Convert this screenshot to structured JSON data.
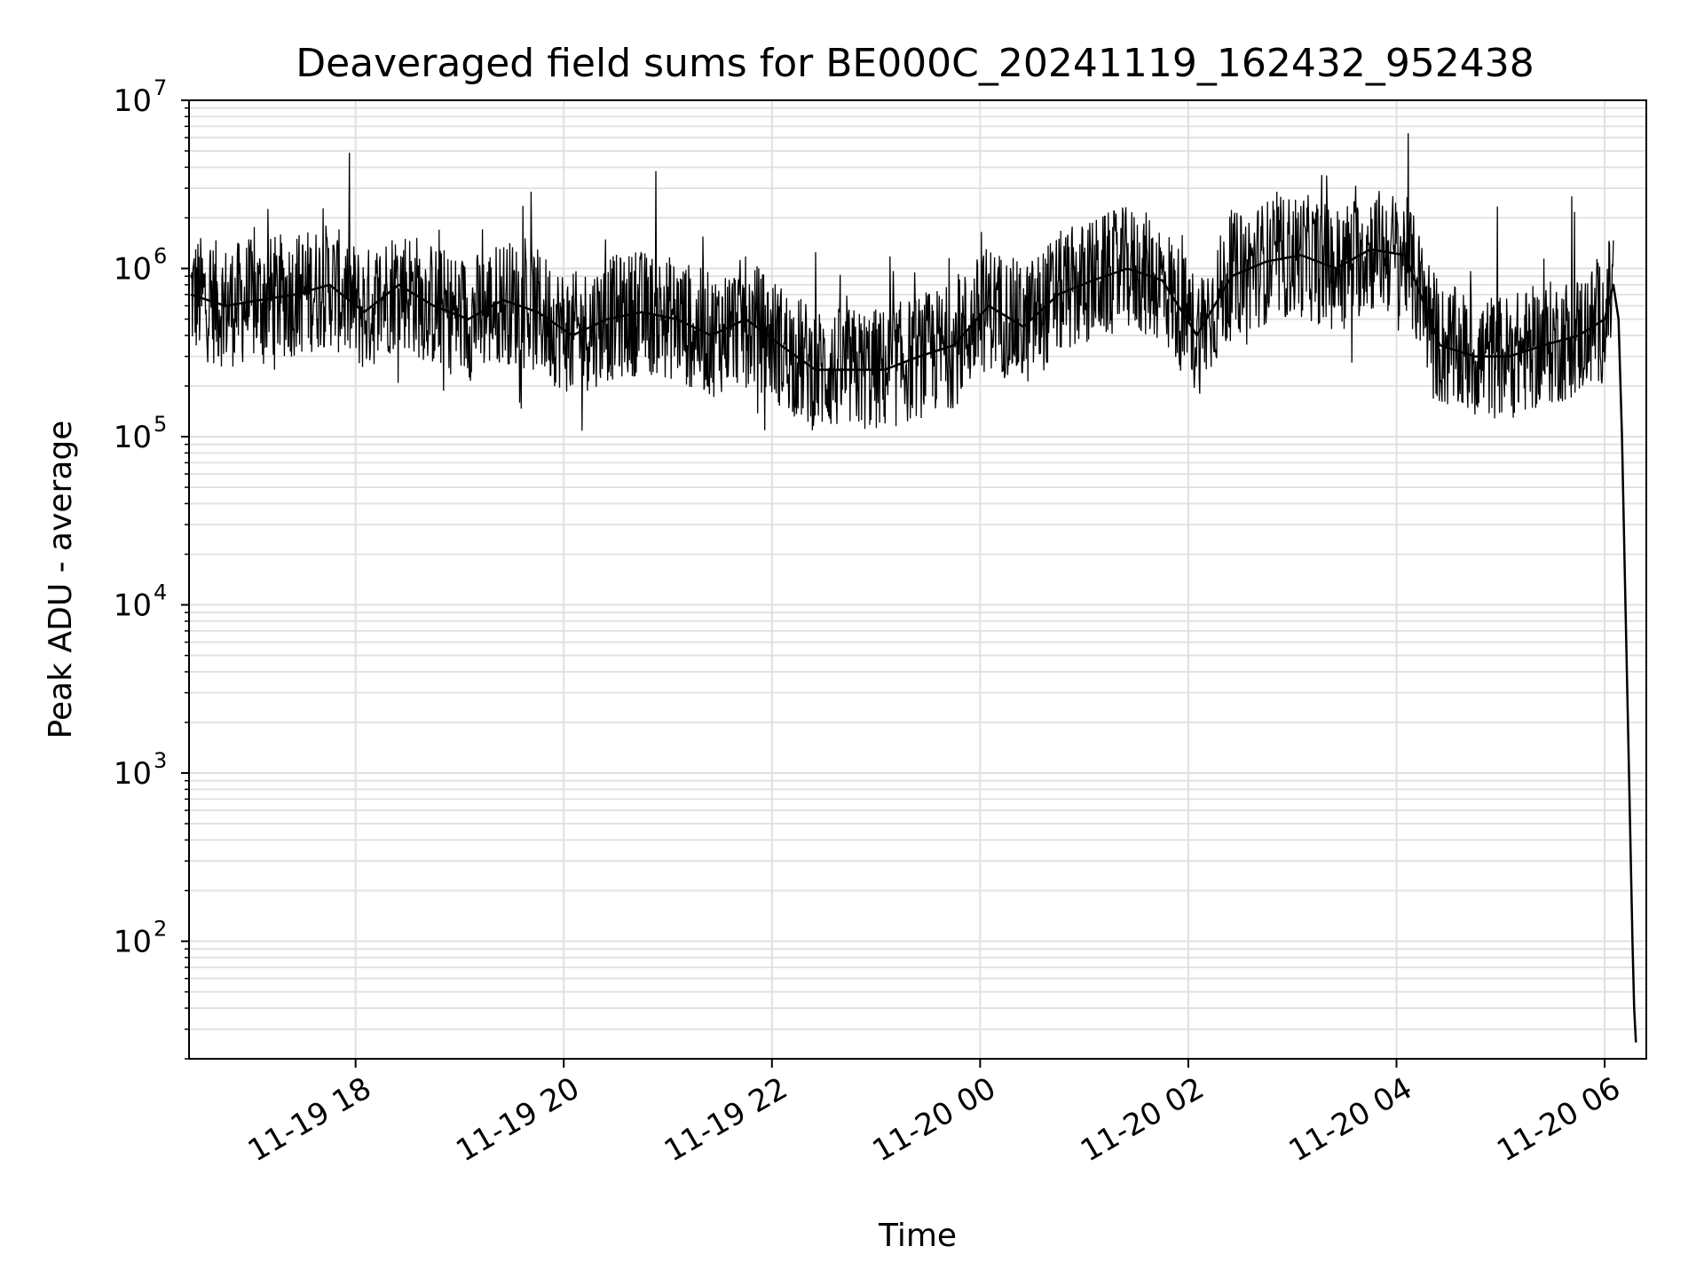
{
  "chart_data": {
    "type": "line",
    "title": "Deaveraged field sums for BE000C_20241119_162432_952438",
    "xlabel": "Time",
    "ylabel": "Peak ADU - average",
    "y_scale": "log",
    "xlim": [
      "2024-11-19 16:24",
      "2024-11-20 06:24"
    ],
    "ylim": [
      20,
      10000000
    ],
    "x_ticks": [
      "11-19 18",
      "11-19 20",
      "11-19 22",
      "11-20 00",
      "11-20 02",
      "11-20 04",
      "11-20 06"
    ],
    "y_ticks": [
      {
        "base": "10",
        "exp": "2"
      },
      {
        "base": "10",
        "exp": "3"
      },
      {
        "base": "10",
        "exp": "4"
      },
      {
        "base": "10",
        "exp": "5"
      },
      {
        "base": "10",
        "exp": "6"
      },
      {
        "base": "10",
        "exp": "7"
      }
    ],
    "grid": "major and minor",
    "line_color": "#000000",
    "grid_color": "#e0e0e0",
    "series": [
      {
        "x": [
          "2024-11-19 16:25",
          "2024-11-19 16:45",
          "2024-11-19 17:05",
          "2024-11-19 17:25",
          "2024-11-19 17:45",
          "2024-11-19 18:05",
          "2024-11-19 18:25",
          "2024-11-19 18:45",
          "2024-11-19 19:05",
          "2024-11-19 19:25",
          "2024-11-19 19:45",
          "2024-11-19 20:05",
          "2024-11-19 20:25",
          "2024-11-19 20:45",
          "2024-11-19 21:05",
          "2024-11-19 21:25",
          "2024-11-19 21:45",
          "2024-11-19 22:05",
          "2024-11-19 22:25",
          "2024-11-19 22:45",
          "2024-11-19 23:05",
          "2024-11-19 23:25",
          "2024-11-19 23:45",
          "2024-11-20 00:05",
          "2024-11-20 00:25",
          "2024-11-20 00:45",
          "2024-11-20 01:05",
          "2024-11-20 01:25",
          "2024-11-20 01:45",
          "2024-11-20 02:05",
          "2024-11-20 02:25",
          "2024-11-20 02:45",
          "2024-11-20 03:05",
          "2024-11-20 03:25",
          "2024-11-20 03:45",
          "2024-11-20 04:05",
          "2024-11-20 04:25",
          "2024-11-20 04:45",
          "2024-11-20 05:05",
          "2024-11-20 05:25",
          "2024-11-20 05:45",
          "2024-11-20 06:00",
          "2024-11-20 06:05",
          "2024-11-20 06:08",
          "2024-11-20 06:10",
          "2024-11-20 06:12",
          "2024-11-20 06:14",
          "2024-11-20 06:16",
          "2024-11-20 06:17",
          "2024-11-20 06:18"
        ],
        "y": [
          700000,
          600000,
          650000,
          700000,
          800000,
          550000,
          800000,
          600000,
          500000,
          650000,
          550000,
          400000,
          500000,
          550000,
          500000,
          400000,
          500000,
          350000,
          250000,
          250000,
          250000,
          300000,
          350000,
          600000,
          450000,
          700000,
          850000,
          1000000,
          850000,
          400000,
          900000,
          1100000,
          1200000,
          1000000,
          1300000,
          1200000,
          350000,
          300000,
          300000,
          350000,
          400000,
          500000,
          800000,
          500000,
          100000,
          10000,
          1000,
          100,
          40,
          25
        ]
      }
    ]
  }
}
